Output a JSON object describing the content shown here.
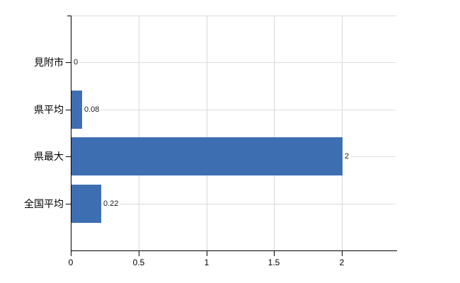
{
  "chart_data": {
    "type": "bar",
    "orientation": "horizontal",
    "title": "",
    "xlabel": "",
    "ylabel": "",
    "categories": [
      "見附市",
      "県平均",
      "県最大",
      "全国平均"
    ],
    "values": [
      0,
      0.08,
      2,
      0.22
    ],
    "value_labels": [
      "0",
      "0.08",
      "2",
      "0.22"
    ],
    "x_tick_values": [
      0,
      0.5,
      1,
      1.5,
      2
    ],
    "x_tick_labels": [
      "0",
      "0.5",
      "1",
      "1.5",
      "2"
    ],
    "xlim": [
      0,
      2.4
    ],
    "grid": true,
    "legend": false,
    "bar_color": "#3d6eb2"
  },
  "colors": {
    "bar": "#3d6eb2",
    "axis": "#000000",
    "grid_horizontal": "#dcdcdc",
    "grid_vertical": "#d8d8d8",
    "plot_top_border": "#d9d9d9",
    "background": "#ffffff",
    "text": "#000000"
  }
}
